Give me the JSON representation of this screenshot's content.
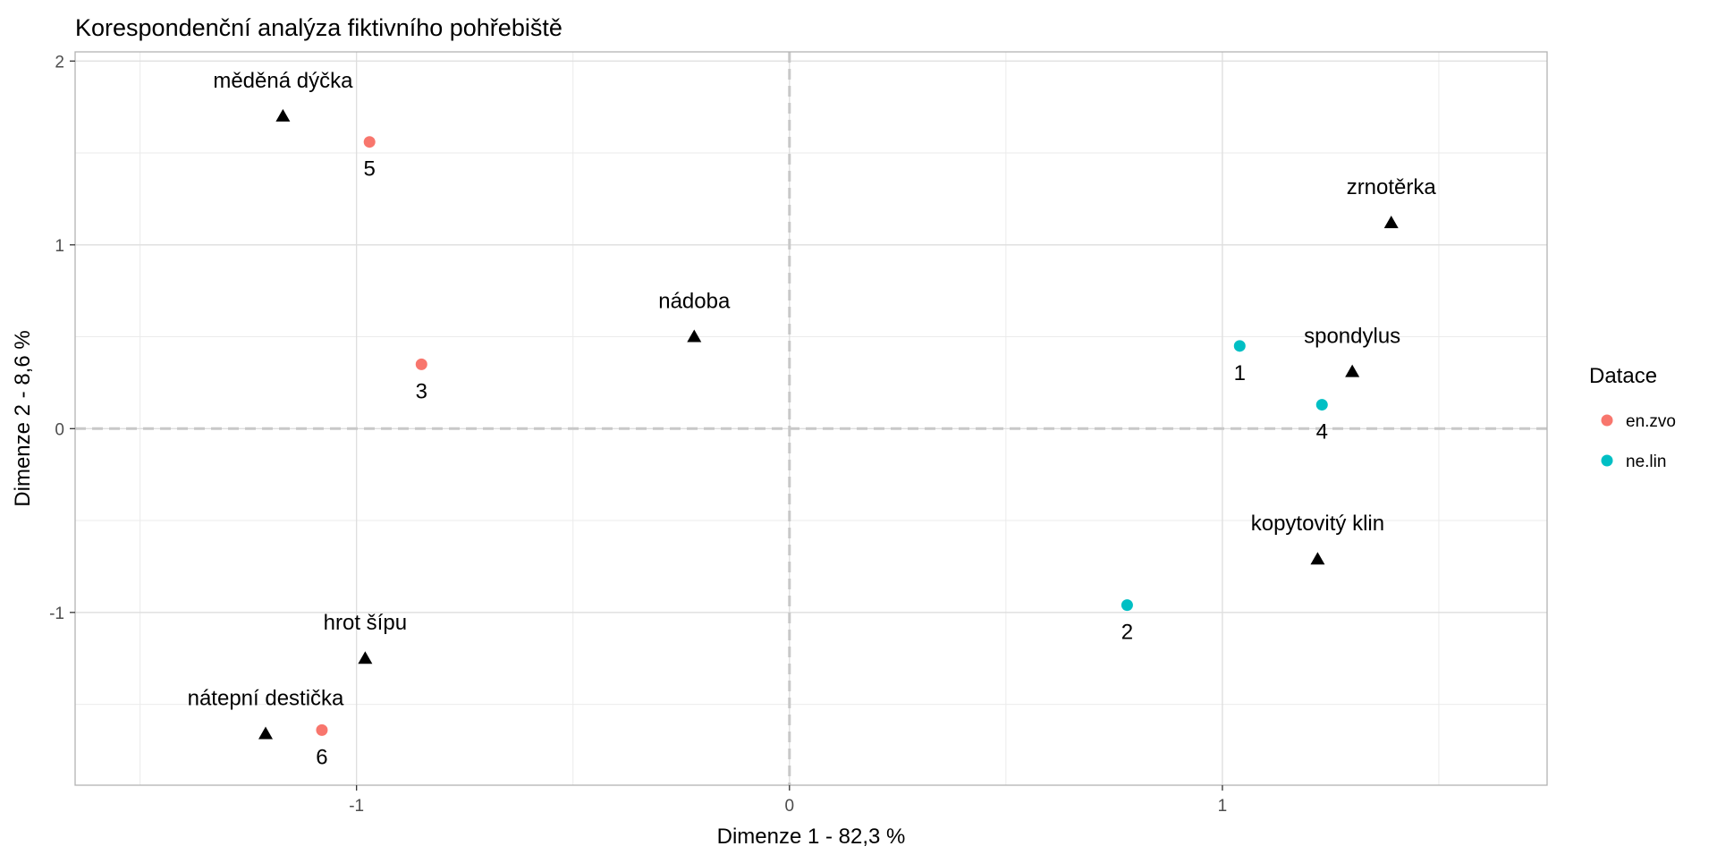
{
  "chart_data": {
    "type": "scatter",
    "title": "Korespondenční analýza fiktivního pohřebiště",
    "xlabel": "Dimenze 1 - 82,3 %",
    "ylabel": "Dimenze 2 - 8,6 %",
    "xlim": [
      -1.65,
      1.75
    ],
    "ylim": [
      -1.94,
      2.05
    ],
    "x_ticks": [
      -1,
      0,
      1
    ],
    "x_tick_labels": [
      "-1",
      "0",
      "1"
    ],
    "y_ticks": [
      -1,
      0,
      1,
      2
    ],
    "y_tick_labels": [
      "-1",
      "0",
      "1",
      "2"
    ],
    "grid": true,
    "reference_lines": {
      "x": 0,
      "y": 0
    },
    "legend": {
      "title": "Datace",
      "position": "right",
      "entries": [
        {
          "label": "en.zvo",
          "color": "#F8766D"
        },
        {
          "label": "ne.lin",
          "color": "#00BFC4"
        }
      ]
    },
    "series": [
      {
        "name": "en.zvo",
        "marker": "circle",
        "color": "#F8766D",
        "points": [
          {
            "label": "3",
            "x": -0.85,
            "y": 0.35
          },
          {
            "label": "5",
            "x": -0.97,
            "y": 1.56
          },
          {
            "label": "6",
            "x": -1.08,
            "y": -1.64
          }
        ]
      },
      {
        "name": "ne.lin",
        "marker": "circle",
        "color": "#00BFC4",
        "points": [
          {
            "label": "1",
            "x": 1.04,
            "y": 0.45
          },
          {
            "label": "2",
            "x": 0.78,
            "y": -0.96
          },
          {
            "label": "4",
            "x": 1.23,
            "y": 0.13
          }
        ]
      },
      {
        "marker": "triangle",
        "color": "#000000",
        "points": [
          {
            "label": "měděná dýčka",
            "x": -1.17,
            "y": 1.7
          },
          {
            "label": "nádoba",
            "x": -0.22,
            "y": 0.5
          },
          {
            "label": "zrnotěrka",
            "x": 1.39,
            "y": 1.12
          },
          {
            "label": "spondylus",
            "x": 1.3,
            "y": 0.31
          },
          {
            "label": "kopytovitý klin",
            "x": 1.22,
            "y": -0.71
          },
          {
            "label": "hrot šípu",
            "x": -0.98,
            "y": -1.25
          },
          {
            "label": "nátepní destička",
            "x": -1.21,
            "y": -1.66
          }
        ]
      }
    ]
  }
}
